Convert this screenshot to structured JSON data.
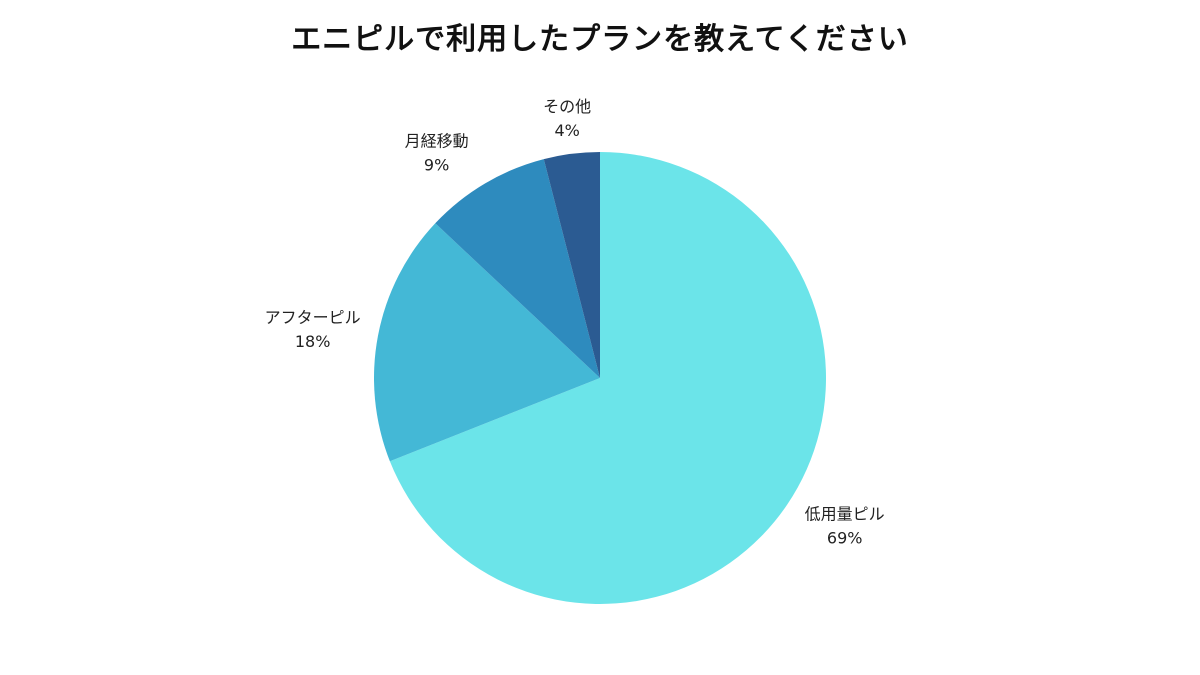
{
  "chart_data": {
    "type": "pie",
    "title": "エニピルで利用したプランを教えてください",
    "categories": [
      "低用量ピル",
      "アフターピル",
      "月経移動",
      "その他"
    ],
    "values": [
      69,
      18,
      9,
      4
    ],
    "value_labels": [
      "69%",
      "18%",
      "9%",
      "4%"
    ],
    "colors": [
      "#6BE4E9",
      "#44B8D6",
      "#2E8BBE",
      "#2B5B92"
    ],
    "start": "12 o'clock",
    "direction": "clockwise",
    "legend": "none",
    "labels": "outside"
  }
}
